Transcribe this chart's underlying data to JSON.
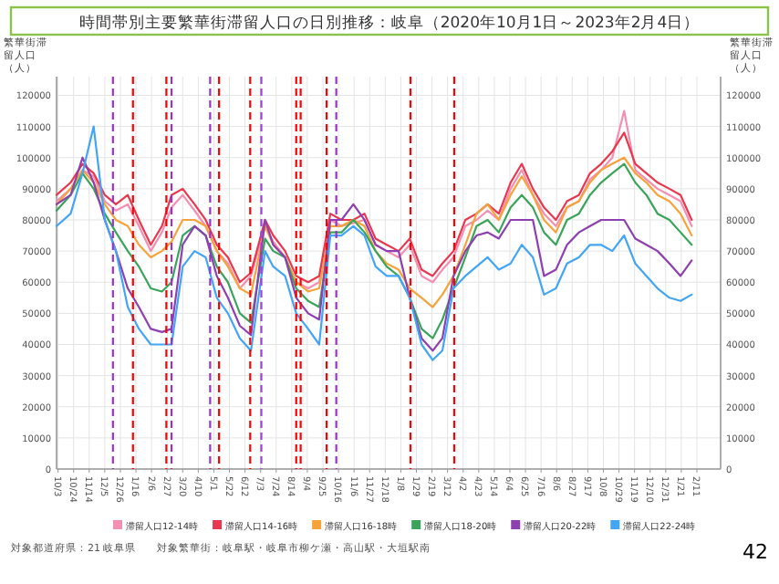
{
  "chart_data": {
    "type": "line",
    "title": "時間帯別主要繁華街滞留人口の日別推移：岐阜（2020年10月1日～2023年2月4日）",
    "ylabel": "繁華街滞留人口（人）",
    "y2label": "繁華街滞留人口（人）",
    "x": [
      "2020-10-01",
      "2020-10-20",
      "2020-11-05",
      "2020-11-20",
      "2020-12-05",
      "2020-12-20",
      "2021-01-05",
      "2021-01-20",
      "2021-02-05",
      "2021-02-20",
      "2021-03-05",
      "2021-03-20",
      "2021-04-05",
      "2021-04-20",
      "2021-05-05",
      "2021-05-20",
      "2021-06-05",
      "2021-06-20",
      "2021-07-09",
      "2021-07-20",
      "2021-08-05",
      "2021-08-20",
      "2021-09-05",
      "2021-09-20",
      "2021-10-05",
      "2021-10-20",
      "2021-11-05",
      "2021-11-20",
      "2021-12-05",
      "2021-12-20",
      "2022-01-05",
      "2022-01-20",
      "2022-02-05",
      "2022-02-20",
      "2022-03-05",
      "2022-03-20",
      "2022-04-05",
      "2022-04-20",
      "2022-05-05",
      "2022-05-20",
      "2022-06-05",
      "2022-06-20",
      "2022-07-05",
      "2022-07-20",
      "2022-08-05",
      "2022-08-20",
      "2022-09-05",
      "2022-09-20",
      "2022-10-05",
      "2022-10-20",
      "2022-11-05",
      "2022-11-20",
      "2022-12-05",
      "2022-12-20",
      "2023-01-05",
      "2023-01-20",
      "2023-02-04"
    ],
    "series": [
      {
        "name": "滞留人口12-14時",
        "color": "#f48fb1",
        "values": [
          86000,
          90000,
          96000,
          94000,
          86000,
          83000,
          85000,
          78000,
          70000,
          76000,
          84000,
          88000,
          83000,
          78000,
          70000,
          66000,
          58000,
          62000,
          78000,
          73000,
          68000,
          60000,
          58000,
          60000,
          80000,
          78000,
          79000,
          80000,
          72000,
          70000,
          68000,
          72000,
          62000,
          60000,
          64000,
          68000,
          78000,
          80000,
          83000,
          80000,
          90000,
          96000,
          88000,
          82000,
          78000,
          84000,
          86000,
          93000,
          96000,
          100000,
          115000,
          96000,
          93000,
          90000,
          88000,
          86000,
          78000
        ]
      },
      {
        "name": "滞留人口14-16時",
        "color": "#e8384f",
        "values": [
          88000,
          92000,
          98000,
          95000,
          88000,
          85000,
          88000,
          80000,
          72000,
          78000,
          88000,
          90000,
          85000,
          80000,
          72000,
          68000,
          60000,
          63000,
          80000,
          75000,
          70000,
          62000,
          60000,
          62000,
          82000,
          80000,
          80000,
          82000,
          74000,
          72000,
          70000,
          74000,
          64000,
          62000,
          66000,
          70000,
          80000,
          82000,
          85000,
          82000,
          92000,
          98000,
          90000,
          84000,
          80000,
          86000,
          88000,
          95000,
          98000,
          102000,
          108000,
          98000,
          95000,
          92000,
          90000,
          88000,
          80000
        ]
      },
      {
        "name": "滞留人口16-18時",
        "color": "#f5a33a",
        "values": [
          85000,
          90000,
          96000,
          92000,
          85000,
          80000,
          78000,
          72000,
          68000,
          70000,
          73000,
          80000,
          80000,
          78000,
          70000,
          65000,
          58000,
          56000,
          78000,
          72000,
          68000,
          60000,
          57000,
          58000,
          78000,
          78000,
          80000,
          78000,
          70000,
          66000,
          64000,
          58000,
          55000,
          52000,
          56000,
          62000,
          72000,
          82000,
          85000,
          80000,
          88000,
          94000,
          88000,
          80000,
          76000,
          84000,
          86000,
          92000,
          96000,
          98000,
          100000,
          95000,
          92000,
          88000,
          86000,
          82000,
          75000
        ]
      },
      {
        "name": "滞留人口18-20時",
        "color": "#3aa55a",
        "values": [
          83000,
          88000,
          95000,
          90000,
          82000,
          76000,
          70000,
          65000,
          58000,
          57000,
          60000,
          75000,
          78000,
          75000,
          65000,
          60000,
          50000,
          47000,
          74000,
          70000,
          68000,
          58000,
          54000,
          52000,
          76000,
          76000,
          80000,
          76000,
          70000,
          65000,
          62000,
          55000,
          45000,
          42000,
          48000,
          58000,
          68000,
          78000,
          80000,
          76000,
          84000,
          88000,
          84000,
          76000,
          72000,
          80000,
          82000,
          88000,
          92000,
          95000,
          98000,
          92000,
          88000,
          82000,
          80000,
          76000,
          72000
        ]
      },
      {
        "name": "滞留人口20-22時",
        "color": "#8e3fb0",
        "values": [
          85000,
          88000,
          100000,
          92000,
          80000,
          70000,
          58000,
          52000,
          45000,
          44000,
          45000,
          72000,
          78000,
          75000,
          62000,
          55000,
          46000,
          43000,
          80000,
          72000,
          68000,
          55000,
          50000,
          48000,
          80000,
          80000,
          85000,
          80000,
          72000,
          70000,
          70000,
          55000,
          42000,
          38000,
          42000,
          62000,
          70000,
          75000,
          76000,
          74000,
          80000,
          80000,
          80000,
          62000,
          64000,
          72000,
          76000,
          78000,
          80000,
          80000,
          80000,
          74000,
          72000,
          70000,
          66000,
          62000,
          67000
        ]
      },
      {
        "name": "滞留人口22-24時",
        "color": "#42a5f5",
        "values": [
          78000,
          82000,
          95000,
          110000,
          80000,
          70000,
          52000,
          45000,
          40000,
          40000,
          40000,
          65000,
          70000,
          68000,
          55000,
          50000,
          42000,
          38000,
          70000,
          65000,
          62000,
          50000,
          45000,
          40000,
          75000,
          75000,
          78000,
          75000,
          65000,
          62000,
          62000,
          55000,
          40000,
          35000,
          38000,
          58000,
          62000,
          65000,
          68000,
          64000,
          66000,
          72000,
          68000,
          56000,
          58000,
          66000,
          68000,
          72000,
          72000,
          70000,
          75000,
          66000,
          62000,
          58000,
          55000,
          54000,
          56000
        ]
      }
    ],
    "xlim": [
      "2020-10-01",
      "2023-03-15"
    ],
    "xticks": [
      {
        "value": "2020-10-03",
        "label": "10/3"
      },
      {
        "value": "2020-10-24",
        "label": "10/24"
      },
      {
        "value": "2020-11-14",
        "label": "11/14"
      },
      {
        "value": "2020-12-05",
        "label": "12/5"
      },
      {
        "value": "2020-12-26",
        "label": "12/26"
      },
      {
        "value": "2021-01-16",
        "label": "1/16"
      },
      {
        "value": "2021-02-06",
        "label": "2/6"
      },
      {
        "value": "2021-02-27",
        "label": "2/27"
      },
      {
        "value": "2021-03-20",
        "label": "3/20"
      },
      {
        "value": "2021-04-10",
        "label": "4/10"
      },
      {
        "value": "2021-05-01",
        "label": "5/1"
      },
      {
        "value": "2021-05-22",
        "label": "5/22"
      },
      {
        "value": "2021-06-12",
        "label": "6/12"
      },
      {
        "value": "2021-07-03",
        "label": "7/3"
      },
      {
        "value": "2021-07-24",
        "label": "7/24"
      },
      {
        "value": "2021-08-14",
        "label": "8/14"
      },
      {
        "value": "2021-09-04",
        "label": "9/4"
      },
      {
        "value": "2021-09-25",
        "label": "9/25"
      },
      {
        "value": "2021-10-16",
        "label": "10/16"
      },
      {
        "value": "2021-11-06",
        "label": "11/6"
      },
      {
        "value": "2021-11-27",
        "label": "11/27"
      },
      {
        "value": "2021-12-18",
        "label": "12/18"
      },
      {
        "value": "2022-01-08",
        "label": "1/8"
      },
      {
        "value": "2022-01-29",
        "label": "1/29"
      },
      {
        "value": "2022-02-19",
        "label": "2/19"
      },
      {
        "value": "2022-03-12",
        "label": "3/12"
      },
      {
        "value": "2022-04-02",
        "label": "4/2"
      },
      {
        "value": "2022-04-23",
        "label": "4/23"
      },
      {
        "value": "2022-05-14",
        "label": "5/14"
      },
      {
        "value": "2022-06-04",
        "label": "6/4"
      },
      {
        "value": "2022-06-25",
        "label": "6/25"
      },
      {
        "value": "2022-07-16",
        "label": "7/16"
      },
      {
        "value": "2022-08-06",
        "label": "8/6"
      },
      {
        "value": "2022-08-27",
        "label": "8/27"
      },
      {
        "value": "2022-09-17",
        "label": "9/17"
      },
      {
        "value": "2022-10-08",
        "label": "10/8"
      },
      {
        "value": "2022-10-29",
        "label": "10/29"
      },
      {
        "value": "2022-11-19",
        "label": "11/19"
      },
      {
        "value": "2022-12-10",
        "label": "12/10"
      },
      {
        "value": "2022-12-31",
        "label": "12/31"
      },
      {
        "value": "2023-01-21",
        "label": "1/21"
      },
      {
        "value": "2023-02-11",
        "label": "2/11"
      }
    ],
    "ylim": [
      0,
      126000
    ],
    "yticks": [
      0,
      10000,
      20000,
      30000,
      40000,
      50000,
      60000,
      70000,
      80000,
      90000,
      100000,
      110000,
      120000
    ],
    "y2lim": [
      0,
      126000
    ],
    "y2ticks": [
      0,
      10000,
      20000,
      30000,
      40000,
      50000,
      60000,
      70000,
      80000,
      90000,
      100000,
      110000,
      120000
    ],
    "ref_lines": [
      {
        "axis": "x",
        "value": "2020-12-16",
        "color": "#9933cc",
        "line_style": "dashed"
      },
      {
        "axis": "x",
        "value": "2021-01-12",
        "color": "#ff0000",
        "line_style": "dashed"
      },
      {
        "axis": "x",
        "value": "2021-02-26",
        "color": "#ff0000",
        "line_style": "dashed"
      },
      {
        "axis": "x",
        "value": "2021-03-05",
        "color": "#9933cc",
        "line_style": "dashed"
      },
      {
        "axis": "x",
        "value": "2021-04-26",
        "color": "#9933cc",
        "line_style": "dashed"
      },
      {
        "axis": "x",
        "value": "2021-05-08",
        "color": "#ff0000",
        "line_style": "dashed"
      },
      {
        "axis": "x",
        "value": "2021-06-19",
        "color": "#ff0000",
        "line_style": "dashed"
      },
      {
        "axis": "x",
        "value": "2021-07-04",
        "color": "#a040e0",
        "line_style": "dashed"
      },
      {
        "axis": "x",
        "value": "2021-08-20",
        "color": "#ff0000",
        "line_style": "dashed"
      },
      {
        "axis": "x",
        "value": "2021-08-26",
        "color": "#ff0000",
        "line_style": "dashed"
      },
      {
        "axis": "x",
        "value": "2021-09-30",
        "color": "#ff0000",
        "line_style": "dashed"
      },
      {
        "axis": "x",
        "value": "2021-10-13",
        "color": "#9933cc",
        "line_style": "dashed"
      },
      {
        "axis": "x",
        "value": "2022-01-21",
        "color": "#ff0000",
        "line_style": "dashed"
      },
      {
        "axis": "x",
        "value": "2022-03-21",
        "color": "#ff0000",
        "line_style": "dashed"
      }
    ],
    "annotations": [
      "対象都道府県：21 岐阜県",
      "対象繁華街：岐阜駅・岐阜市柳ケ瀬・高山駅・大垣駅南",
      "42"
    ],
    "grid": true,
    "legend": "bottom",
    "marker": "none",
    "line_style": "solid"
  }
}
